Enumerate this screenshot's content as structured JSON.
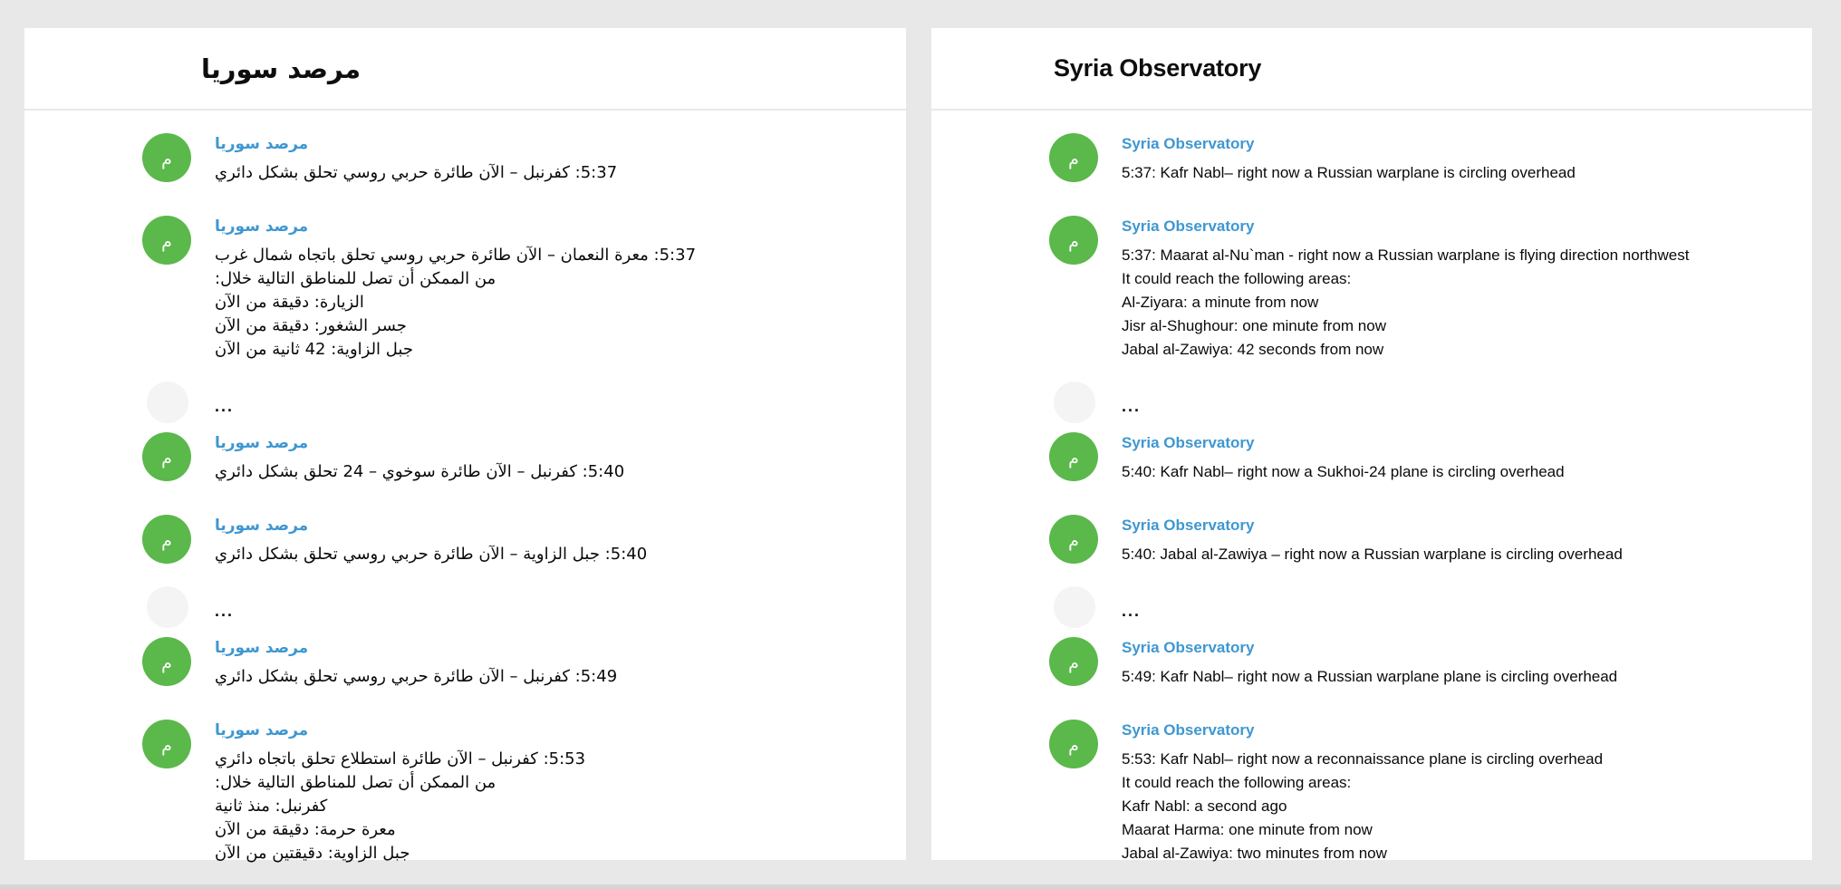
{
  "avatar_letter": "م",
  "ellipsis": "...",
  "colors": {
    "page_bg": "#e8e8e8",
    "panel_bg": "#ffffff",
    "header_divider": "#e9e9e9",
    "avatar_green": "#5bb84b",
    "sender_blue": "#3e97d1",
    "message_text": "#0a0a0a",
    "bottom_edge": "#d6d6d6"
  },
  "left_panel": {
    "title": "مرصد سوريا",
    "dir": "rtl",
    "sender": "مرصد سوريا",
    "items": [
      {
        "type": "message",
        "lines": [
          "5:37: كفرنبل – الآن طائرة حربي روسي تحلق بشكل دائري"
        ]
      },
      {
        "type": "message",
        "lines": [
          "5:37: معرة النعمان – الآن طائرة حربي روسي تحلق باتجاه شمال غرب",
          "من الممكن أن تصل للمناطق التالية خلال:",
          "الزيارة: دقيقة من الآن",
          "جسر الشغور: دقيقة من الآن",
          "جبل الزاوية: 42 ثانية من الآن"
        ]
      },
      {
        "type": "ellipsis"
      },
      {
        "type": "message",
        "lines": [
          "5:40: كفرنبل – الآن طائرة سوخوي – 24 تحلق بشكل دائري"
        ]
      },
      {
        "type": "message",
        "lines": [
          "5:40: جبل الزاوية – الآن طائرة حربي روسي تحلق بشكل دائري"
        ]
      },
      {
        "type": "ellipsis"
      },
      {
        "type": "message",
        "lines": [
          "5:49: كفرنبل – الآن طائرة حربي روسي تحلق بشكل دائري"
        ]
      },
      {
        "type": "message",
        "lines": [
          "5:53: كفرنبل – الآن طائرة استطلاع تحلق باتجاه دائري",
          "من الممكن أن تصل للمناطق التالية خلال:",
          "كفرنبل: منذ ثانية",
          "معرة حرمة: دقيقة من الآن",
          "جبل الزاوية: دقيقتين من الآن"
        ]
      }
    ]
  },
  "right_panel": {
    "title": "Syria Observatory",
    "dir": "ltr",
    "sender": "Syria Observatory",
    "items": [
      {
        "type": "message",
        "lines": [
          "5:37: Kafr Nabl– right now a Russian warplane is circling overhead"
        ]
      },
      {
        "type": "message",
        "lines": [
          "5:37: Maarat al-Nu`man - right now a Russian warplane is flying direction northwest",
          "It could reach the following areas:",
          "Al-Ziyara: a minute from now",
          "Jisr al-Shughour: one minute from now",
          "Jabal al-Zawiya: 42 seconds from now"
        ]
      },
      {
        "type": "ellipsis"
      },
      {
        "type": "message",
        "lines": [
          "5:40: Kafr Nabl– right now a Sukhoi-24 plane is circling overhead"
        ]
      },
      {
        "type": "message",
        "lines": [
          "5:40: Jabal al-Zawiya – right now a Russian warplane is circling overhead"
        ]
      },
      {
        "type": "ellipsis"
      },
      {
        "type": "message",
        "lines": [
          "5:49: Kafr Nabl– right now a Russian warplane plane is circling overhead"
        ]
      },
      {
        "type": "message",
        "lines": [
          "5:53: Kafr Nabl– right now a reconnaissance plane is circling overhead",
          "It could reach the following areas:",
          "Kafr Nabl: a second ago",
          "Maarat Harma: one minute from now",
          "Jabal al-Zawiya: two minutes from now"
        ]
      }
    ]
  }
}
